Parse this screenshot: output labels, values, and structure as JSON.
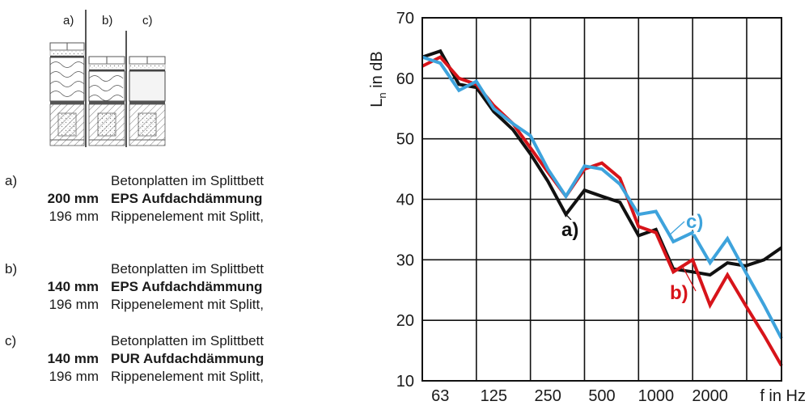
{
  "figure": {
    "case_labels": [
      "a)",
      "b)",
      "c)"
    ],
    "specs": [
      {
        "letter": "a)",
        "lines": [
          {
            "thickness": "",
            "text": "Betonplatten im Splittbett",
            "bold": false
          },
          {
            "thickness": "200 mm",
            "text": "EPS Aufdachdämmung",
            "bold": true
          },
          {
            "thickness": "196 mm",
            "text": "Rippenelement mit Splitt,",
            "bold": false
          }
        ]
      },
      {
        "letter": "b)",
        "lines": [
          {
            "thickness": "",
            "text": "Betonplatten im Splittbett",
            "bold": false
          },
          {
            "thickness": "140 mm",
            "text": "EPS Aufdachdämmung",
            "bold": true
          },
          {
            "thickness": "196 mm",
            "text": "Rippenelement mit Splitt,",
            "bold": false
          }
        ]
      },
      {
        "letter": "c)",
        "lines": [
          {
            "thickness": "",
            "text": "Betonplatten im Splittbett",
            "bold": false
          },
          {
            "thickness": "140 mm",
            "text": "PUR Aufdachdämmung",
            "bold": true
          },
          {
            "thickness": "196 mm",
            "text": "Rippenelement mit Splitt,",
            "bold": false
          }
        ]
      }
    ]
  },
  "chart_data": {
    "type": "line",
    "title": "",
    "xlabel": "f in Hz",
    "ylabel_main": "L",
    "ylabel_sub": "n",
    "ylabel_rest": " in dB",
    "x_scale": "log (third-octave bands)",
    "x_band_range": [
      50,
      5000
    ],
    "x_tick_labels": [
      "63",
      "125",
      "250",
      "500",
      "1000",
      "2000"
    ],
    "x_tick_freqs": [
      63,
      125,
      250,
      500,
      1000,
      2000
    ],
    "ylim": [
      10,
      70
    ],
    "y_ticks": [
      10,
      20,
      30,
      40,
      50,
      60,
      70
    ],
    "grid": true,
    "x": [
      50,
      63,
      80,
      100,
      125,
      160,
      200,
      250,
      315,
      400,
      500,
      630,
      800,
      1000,
      1250,
      1600,
      2000,
      2500,
      3150,
      4000,
      5000
    ],
    "series": [
      {
        "name": "a)",
        "color": "#111111",
        "values": [
          63.5,
          64.5,
          59.0,
          58.5,
          54.5,
          51.5,
          47.5,
          43.0,
          37.5,
          41.5,
          40.5,
          39.5,
          34.0,
          35.0,
          28.5,
          28.0,
          27.5,
          29.5,
          29.0,
          30.0,
          32.0
        ]
      },
      {
        "name": "b)",
        "color": "#d7141a",
        "values": [
          62.0,
          63.5,
          60.0,
          59.0,
          55.5,
          52.5,
          48.5,
          44.5,
          40.5,
          45.0,
          46.0,
          43.5,
          35.5,
          34.5,
          28.0,
          30.0,
          22.5,
          27.5,
          22.5,
          17.5,
          12.5
        ]
      },
      {
        "name": "c)",
        "color": "#3ea3dc",
        "values": [
          63.5,
          62.5,
          58.0,
          59.5,
          55.0,
          52.5,
          50.5,
          45.0,
          40.5,
          45.5,
          45.0,
          42.5,
          37.5,
          38.0,
          33.0,
          34.5,
          29.5,
          33.5,
          28.0,
          22.5,
          17.0
        ]
      }
    ],
    "annotations": [
      {
        "text": "a)",
        "series": "a)",
        "color": "#111111"
      },
      {
        "text": "b)",
        "series": "b)",
        "color": "#d7141a"
      },
      {
        "text": "c)",
        "series": "c)",
        "color": "#3ea3dc"
      }
    ]
  }
}
